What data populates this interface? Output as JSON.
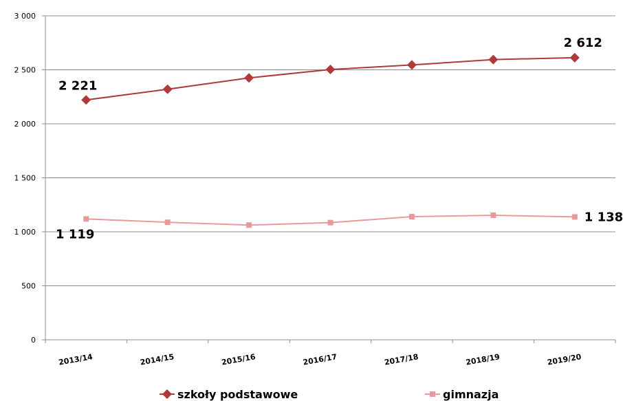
{
  "chart_data": {
    "type": "line",
    "categories": [
      "2013/14",
      "2014/15",
      "2015/16",
      "2016/17",
      "2017/18",
      "2018/19",
      "2019/20"
    ],
    "series": [
      {
        "name": "szkoły podstawowe",
        "values": [
          2221,
          2320,
          2425,
          2503,
          2545,
          2595,
          2612
        ],
        "color": "#b03a3a",
        "marker": "diamond"
      },
      {
        "name": "gimnazja",
        "values": [
          1119,
          1088,
          1062,
          1085,
          1140,
          1153,
          1138
        ],
        "color": "#e89a9a",
        "marker": "square"
      }
    ],
    "ylim": [
      0,
      3000
    ],
    "yticks": [
      {
        "value": 0,
        "label": "0"
      },
      {
        "value": 500,
        "label": "500"
      },
      {
        "value": 1000,
        "label": "1 000"
      },
      {
        "value": 1500,
        "label": "1 500"
      },
      {
        "value": 2000,
        "label": "2 000"
      },
      {
        "value": 2500,
        "label": "2 500"
      },
      {
        "value": 3000,
        "label": "3 000"
      }
    ],
    "data_labels": [
      {
        "series": 0,
        "index": 0,
        "text": "2 221"
      },
      {
        "series": 0,
        "index": 6,
        "text": "2 612"
      },
      {
        "series": 1,
        "index": 0,
        "text": "1 119"
      },
      {
        "series": 1,
        "index": 6,
        "text": "1 138"
      }
    ],
    "grid": true,
    "legend": "bottom",
    "title": "",
    "xlabel": "",
    "ylabel": ""
  }
}
